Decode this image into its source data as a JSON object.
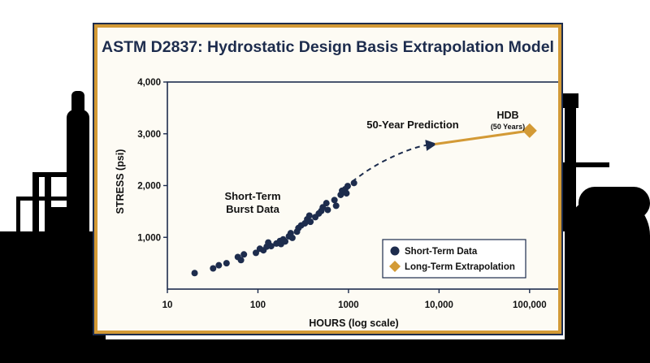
{
  "colors": {
    "navy": "#1d2c4d",
    "gold": "#d39a36",
    "panel_background": "#fdfbf4",
    "silhouette": "#000000"
  },
  "chart_data": {
    "type": "scatter",
    "title": "ASTM D2837: Hydrostatic Design Basis Extrapolation Model",
    "xlabel": "HOURS (log scale)",
    "ylabel": "STRESS (psi)",
    "x_scale": "log",
    "xlim": [
      10,
      300000
    ],
    "ylim": [
      0,
      4000
    ],
    "x_ticks": [
      {
        "value": 10,
        "label": "10"
      },
      {
        "value": 100,
        "label": "100"
      },
      {
        "value": 1000,
        "label": "1000"
      },
      {
        "value": 10000,
        "label": "10,000"
      },
      {
        "value": 100000,
        "label": "100,000"
      }
    ],
    "y_ticks": [
      {
        "value": 1000,
        "label": "1,000"
      },
      {
        "value": 2000,
        "label": "2,000"
      },
      {
        "value": 3000,
        "label": "3,000"
      },
      {
        "value": 4000,
        "label": "4,000"
      }
    ],
    "grid": false,
    "legend_position": "bottom-right",
    "series": [
      {
        "name": "Short-Term Data",
        "marker": "circle",
        "color": "#1d2c4d",
        "points": [
          [
            20,
            310
          ],
          [
            32,
            400
          ],
          [
            37,
            460
          ],
          [
            45,
            500
          ],
          [
            60,
            620
          ],
          [
            65,
            560
          ],
          [
            70,
            670
          ],
          [
            95,
            700
          ],
          [
            105,
            780
          ],
          [
            115,
            750
          ],
          [
            125,
            820
          ],
          [
            130,
            900
          ],
          [
            140,
            830
          ],
          [
            160,
            880
          ],
          [
            175,
            930
          ],
          [
            180,
            870
          ],
          [
            190,
            960
          ],
          [
            200,
            920
          ],
          [
            220,
            1020
          ],
          [
            230,
            1080
          ],
          [
            240,
            990
          ],
          [
            270,
            1110
          ],
          [
            280,
            1180
          ],
          [
            300,
            1230
          ],
          [
            330,
            1270
          ],
          [
            350,
            1350
          ],
          [
            370,
            1420
          ],
          [
            380,
            1300
          ],
          [
            430,
            1390
          ],
          [
            470,
            1460
          ],
          [
            500,
            1510
          ],
          [
            520,
            1580
          ],
          [
            570,
            1660
          ],
          [
            590,
            1530
          ],
          [
            700,
            1720
          ],
          [
            730,
            1610
          ],
          [
            820,
            1820
          ],
          [
            850,
            1900
          ],
          [
            920,
            1930
          ],
          [
            950,
            1850
          ],
          [
            980,
            1990
          ],
          [
            1150,
            2050
          ]
        ]
      },
      {
        "name": "Long-Term Extrapolation",
        "marker": "diamond",
        "color": "#d39a36",
        "points": [
          [
            100000,
            3060
          ]
        ]
      }
    ],
    "trend_curve": [
      [
        1100,
        2080
      ],
      [
        1800,
        2350
      ],
      [
        3300,
        2590
      ],
      [
        6000,
        2760
      ],
      [
        9000,
        2800
      ]
    ],
    "extrapolation_line": [
      [
        9000,
        2800
      ],
      [
        100000,
        3060
      ]
    ],
    "annotations": {
      "short_term_label": [
        "Short-Term",
        "Burst Data"
      ],
      "prediction_label": "50-Year Prediction",
      "hdb_label": "HDB",
      "hdb_sublabel": "(50 Years)"
    }
  }
}
